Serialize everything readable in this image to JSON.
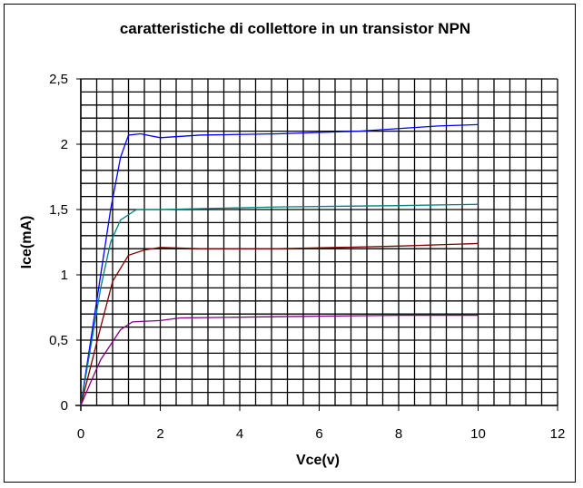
{
  "chart_data": {
    "type": "line",
    "title": "caratteristiche di collettore in un transistor NPN",
    "xlabel": "Vce(v)",
    "ylabel": "Ice(mA)",
    "xlim": [
      0,
      12
    ],
    "ylim": [
      0,
      2.5
    ],
    "xticks": [
      "0",
      "2",
      "4",
      "6",
      "8",
      "10",
      "12"
    ],
    "yticks": [
      "0",
      "0,5",
      "1",
      "1,5",
      "2",
      "2,5"
    ],
    "grid": true,
    "legend": "none",
    "series": [
      {
        "color": "#0000ff",
        "points": [
          [
            0,
            0
          ],
          [
            0.25,
            0.5
          ],
          [
            0.5,
            1.0
          ],
          [
            0.75,
            1.5
          ],
          [
            1.0,
            1.9
          ],
          [
            1.2,
            2.07
          ],
          [
            1.5,
            2.08
          ],
          [
            2.0,
            2.05
          ],
          [
            3,
            2.07
          ],
          [
            5,
            2.08
          ],
          [
            7,
            2.1
          ],
          [
            9,
            2.14
          ],
          [
            10,
            2.15
          ]
        ]
      },
      {
        "color": "#008080",
        "points": [
          [
            0,
            0
          ],
          [
            0.25,
            0.45
          ],
          [
            0.5,
            0.9
          ],
          [
            0.75,
            1.25
          ],
          [
            1.0,
            1.42
          ],
          [
            1.4,
            1.5
          ],
          [
            2,
            1.5
          ],
          [
            5,
            1.52
          ],
          [
            8,
            1.53
          ],
          [
            10,
            1.54
          ]
        ]
      },
      {
        "color": "#800000",
        "points": [
          [
            0,
            0
          ],
          [
            0.25,
            0.3
          ],
          [
            0.5,
            0.6
          ],
          [
            0.8,
            0.95
          ],
          [
            1.2,
            1.15
          ],
          [
            1.6,
            1.19
          ],
          [
            2,
            1.21
          ],
          [
            3,
            1.2
          ],
          [
            5,
            1.2
          ],
          [
            8,
            1.22
          ],
          [
            10,
            1.24
          ]
        ]
      },
      {
        "color": "#800080",
        "points": [
          [
            0,
            0
          ],
          [
            0.25,
            0.18
          ],
          [
            0.5,
            0.35
          ],
          [
            1.0,
            0.58
          ],
          [
            1.3,
            0.64
          ],
          [
            2,
            0.65
          ],
          [
            2.5,
            0.67
          ],
          [
            5,
            0.68
          ],
          [
            8,
            0.69
          ],
          [
            10,
            0.69
          ]
        ]
      }
    ]
  }
}
